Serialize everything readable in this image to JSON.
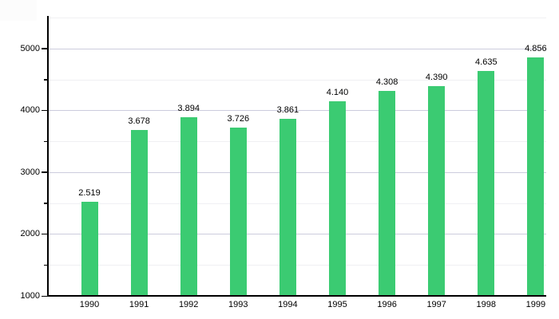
{
  "chart_data": {
    "type": "bar",
    "title": "",
    "xlabel": "",
    "ylabel": "",
    "categories": [
      "1990",
      "1991",
      "1992",
      "1993",
      "1994",
      "1995",
      "1996",
      "1997",
      "1998",
      "1999"
    ],
    "values": [
      2519,
      3678,
      3894,
      3726,
      3861,
      4140,
      4308,
      4390,
      4635,
      4856
    ],
    "value_labels": [
      "2.519",
      "3.678",
      "3.894",
      "3.726",
      "3.861",
      "4.140",
      "4.308",
      "4.390",
      "4.635",
      "4.856"
    ],
    "y_axis": {
      "min": 1000,
      "max": 5500,
      "major_step": 1000,
      "minor_step": 500,
      "tick_labels": [
        "1000",
        "2000",
        "3000",
        "4000",
        "5000"
      ]
    },
    "grid": true,
    "legend_visible": false,
    "colors": {
      "bar": "#3bcb72",
      "axis": "#000000",
      "grid_major": "#ccccdd",
      "grid_minor": "#f0f0f3",
      "text": "#000000"
    }
  }
}
